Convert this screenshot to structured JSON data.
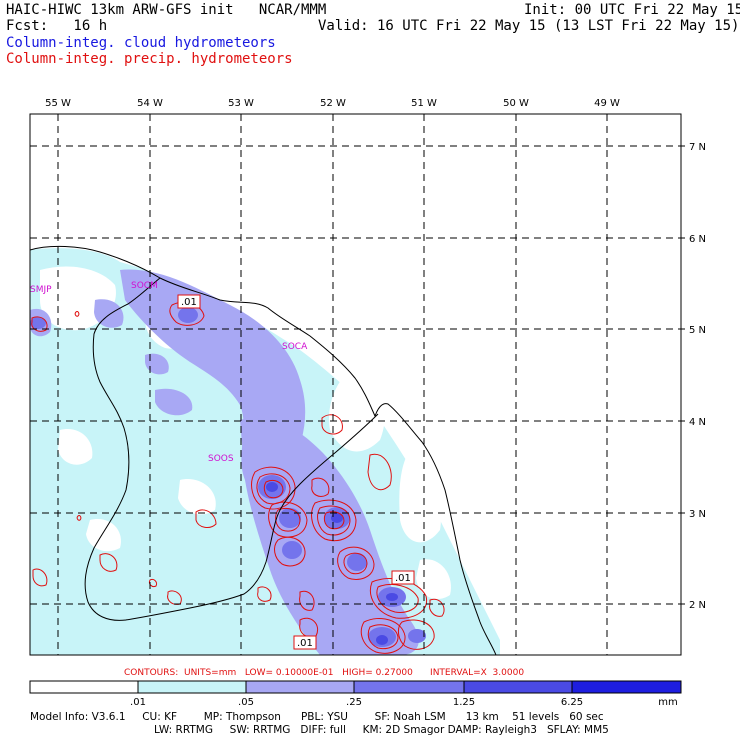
{
  "header": {
    "title": "HAIC-HIWC 13km ARW-GFS init   NCAR/MMM",
    "init": "Init: 00 UTC Fri 22 May 15",
    "fcst": "Fcst:   16 h",
    "valid": "Valid: 16 UTC Fri 22 May 15 (13 LST Fri 22 May 15)",
    "field_cloud": "Column-integ. cloud hydrometeors",
    "field_precip": "Column-integ. precip. hydrometeors"
  },
  "map": {
    "lon_labels": [
      "55 W",
      "54 W",
      "53 W",
      "52 W",
      "51 W",
      "50 W",
      "49 W"
    ],
    "lat_labels": [
      "7 N",
      "6 N",
      "5 N",
      "4 N",
      "3 N",
      "2 N"
    ],
    "stations": [
      "SMJP",
      "SOCM",
      "SOCA",
      "SOOS"
    ],
    "contour_labels": [
      ".01",
      ".01",
      ".01"
    ],
    "colors": {
      "shade1": "#c8f4f8",
      "shade2": "#a8a8f4",
      "shade3": "#7474ec",
      "shade4": "#4a4ae4",
      "shade5": "#1e1ee0",
      "precip": "#e01010",
      "station": "#d010d0"
    }
  },
  "contours_info": "CONTOURS:  UNITS=mm   LOW= 0.10000E-01   HIGH= 0.27000      INTERVAL=X  3.0000",
  "colorbar": {
    "ticks": [
      ".01",
      ".05",
      ".25",
      "1.25",
      "6.25"
    ],
    "units": "mm"
  },
  "model_info": {
    "line1": "Model Info: V3.6.1     CU: KF        MP: Thompson      PBL: YSU        SF: Noah LSM      13 km    51 levels   60 sec",
    "line2": "LW: RRTMG     SW: RRTMG   DIFF: full     KM: 2D Smagor DAMP: Rayleigh3   SFLAY: MM5"
  }
}
